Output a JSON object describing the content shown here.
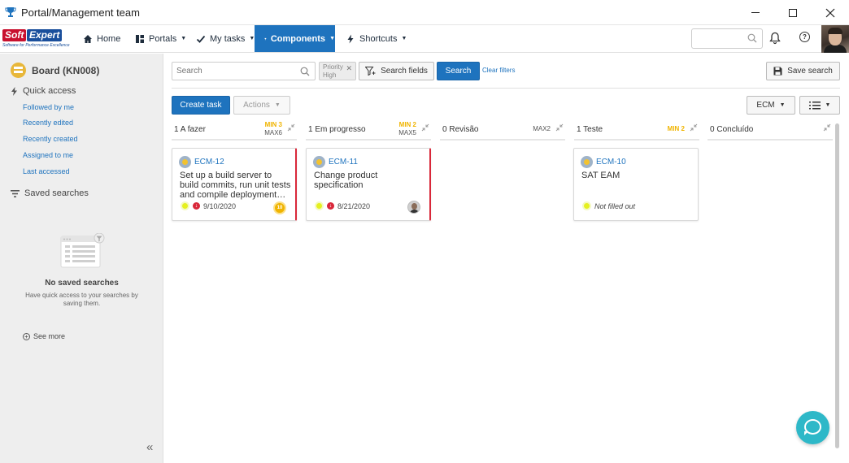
{
  "window": {
    "title": "Portal/Management team"
  },
  "logo": {
    "soft": "Soft",
    "expert": "Expert",
    "tagline": "Software for Performance Excellence"
  },
  "nav": {
    "home": "Home",
    "portals": "Portals",
    "my_tasks": "My tasks",
    "components": "Components",
    "shortcuts": "Shortcuts"
  },
  "sidebar": {
    "board_title": "Board (KN008)",
    "quick_access_label": "Quick access",
    "quick_links": [
      "Followed by me",
      "Recently edited",
      "Recently created",
      "Assigned to me",
      "Last accessed"
    ],
    "saved_searches_label": "Saved searches",
    "empty_title": "No saved searches",
    "empty_text": "Have quick access to your searches by saving them.",
    "see_more": "See more"
  },
  "toolbar": {
    "search_placeholder": "Search",
    "chip_line1": "Priority",
    "chip_line2": "High",
    "search_fields": "Search fields",
    "search": "Search",
    "clear_filters": "Clear filters",
    "save_search": "Save search",
    "create_task": "Create task",
    "actions": "Actions",
    "ecm": "ECM"
  },
  "columns": [
    {
      "count": "1",
      "name": "A fazer",
      "min": "MIN 3",
      "max": "MAX6"
    },
    {
      "count": "1",
      "name": "Em progresso",
      "min": "MIN 2",
      "max": "MAX5"
    },
    {
      "count": "0",
      "name": "Revisão",
      "min": "",
      "max": "MAX2"
    },
    {
      "count": "1",
      "name": "Teste",
      "min": "MIN 2",
      "max": ""
    },
    {
      "count": "0",
      "name": "Concluído",
      "min": "",
      "max": ""
    }
  ],
  "cards": [
    {
      "id": "ECM-12",
      "title": "Set up a build server to build commits, run unit tests and compile deployment…",
      "date": "9/10/2020",
      "badge": "10"
    },
    {
      "id": "ECM-11",
      "title": "Change product specification",
      "date": "8/21/2020"
    },
    {
      "id": "ECM-10",
      "title": "SAT EAM",
      "date": "Not filled out"
    }
  ],
  "colors": {
    "accent": "#1e73be",
    "late": "#d9283a",
    "min": "#f0b400",
    "sidebar_bg": "#eeeeee"
  }
}
